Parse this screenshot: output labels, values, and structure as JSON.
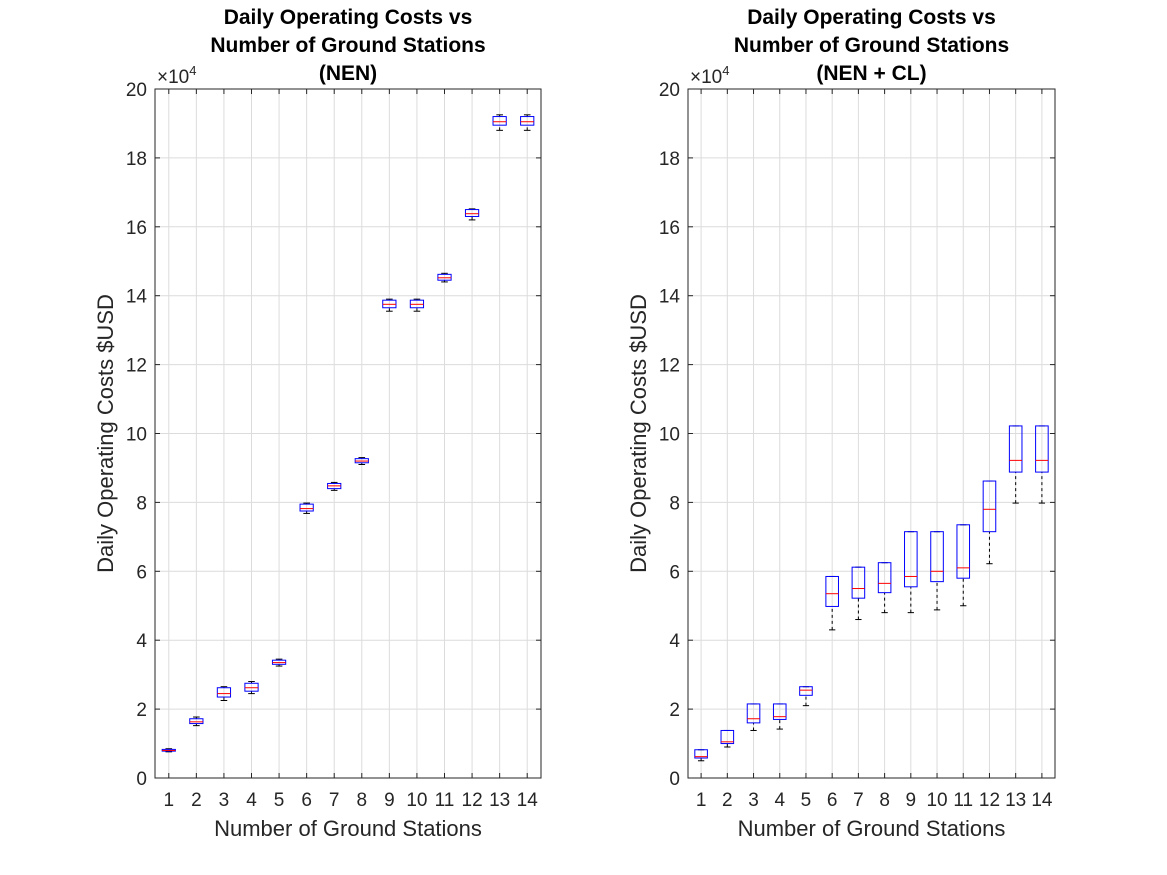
{
  "chart_data": [
    {
      "type": "box",
      "title_lines": [
        "Daily Operating Costs vs",
        "Number of Ground Stations",
        "(NEN)"
      ],
      "xlabel": "Number of Ground Stations",
      "ylabel": "Daily Operating Costs $USD",
      "y_exponent": {
        "base": "×10",
        "power": "4"
      },
      "ylim": [
        0,
        20
      ],
      "yticks": [
        0,
        2,
        4,
        6,
        8,
        10,
        12,
        14,
        16,
        18,
        20
      ],
      "categories": [
        "1",
        "2",
        "3",
        "4",
        "5",
        "6",
        "7",
        "8",
        "9",
        "10",
        "11",
        "12",
        "13",
        "14"
      ],
      "grid": true,
      "boxes": [
        {
          "min": 0.76,
          "q1": 0.78,
          "median": 0.8,
          "q3": 0.83,
          "max": 0.85
        },
        {
          "min": 1.52,
          "q1": 1.58,
          "median": 1.63,
          "q3": 1.72,
          "max": 1.77
        },
        {
          "min": 2.25,
          "q1": 2.35,
          "median": 2.45,
          "q3": 2.62,
          "max": 2.65
        },
        {
          "min": 2.45,
          "q1": 2.52,
          "median": 2.62,
          "q3": 2.75,
          "max": 2.8
        },
        {
          "min": 3.25,
          "q1": 3.3,
          "median": 3.35,
          "q3": 3.42,
          "max": 3.45
        },
        {
          "min": 7.68,
          "q1": 7.75,
          "median": 7.82,
          "q3": 7.95,
          "max": 7.98
        },
        {
          "min": 8.35,
          "q1": 8.4,
          "median": 8.48,
          "q3": 8.55,
          "max": 8.58
        },
        {
          "min": 9.1,
          "q1": 9.15,
          "median": 9.2,
          "q3": 9.27,
          "max": 9.3
        },
        {
          "min": 13.55,
          "q1": 13.65,
          "median": 13.75,
          "q3": 13.87,
          "max": 13.9
        },
        {
          "min": 13.55,
          "q1": 13.65,
          "median": 13.75,
          "q3": 13.87,
          "max": 13.9
        },
        {
          "min": 14.4,
          "q1": 14.45,
          "median": 14.52,
          "q3": 14.62,
          "max": 14.65
        },
        {
          "min": 16.2,
          "q1": 16.3,
          "median": 16.38,
          "q3": 16.5,
          "max": 16.52
        },
        {
          "min": 18.8,
          "q1": 18.95,
          "median": 19.05,
          "q3": 19.2,
          "max": 19.25
        },
        {
          "min": 18.8,
          "q1": 18.95,
          "median": 19.05,
          "q3": 19.2,
          "max": 19.25
        }
      ]
    },
    {
      "type": "box",
      "title_lines": [
        "Daily Operating Costs vs",
        "Number of Ground Stations",
        "(NEN + CL)"
      ],
      "xlabel": "Number of Ground Stations",
      "ylabel": "Daily Operating Costs $USD",
      "y_exponent": {
        "base": "×10",
        "power": "4"
      },
      "ylim": [
        0,
        20
      ],
      "yticks": [
        0,
        2,
        4,
        6,
        8,
        10,
        12,
        14,
        16,
        18,
        20
      ],
      "categories": [
        "1",
        "2",
        "3",
        "4",
        "5",
        "6",
        "7",
        "8",
        "9",
        "10",
        "11",
        "12",
        "13",
        "14"
      ],
      "grid": true,
      "boxes": [
        {
          "min": 0.5,
          "q1": 0.58,
          "median": 0.62,
          "q3": 0.82,
          "max": 0.82
        },
        {
          "min": 0.9,
          "q1": 1.0,
          "median": 1.05,
          "q3": 1.38,
          "max": 1.38
        },
        {
          "min": 1.38,
          "q1": 1.6,
          "median": 1.72,
          "q3": 2.15,
          "max": 2.15
        },
        {
          "min": 1.42,
          "q1": 1.7,
          "median": 1.78,
          "q3": 2.15,
          "max": 2.15
        },
        {
          "min": 2.1,
          "q1": 2.4,
          "median": 2.55,
          "q3": 2.65,
          "max": 2.65
        },
        {
          "min": 4.3,
          "q1": 4.98,
          "median": 5.35,
          "q3": 5.85,
          "max": 5.85
        },
        {
          "min": 4.6,
          "q1": 5.22,
          "median": 5.5,
          "q3": 6.12,
          "max": 6.12
        },
        {
          "min": 4.8,
          "q1": 5.38,
          "median": 5.65,
          "q3": 6.25,
          "max": 6.25
        },
        {
          "min": 4.8,
          "q1": 5.55,
          "median": 5.85,
          "q3": 7.15,
          "max": 7.15
        },
        {
          "min": 4.88,
          "q1": 5.7,
          "median": 6.0,
          "q3": 7.15,
          "max": 7.15
        },
        {
          "min": 5.0,
          "q1": 5.8,
          "median": 6.1,
          "q3": 7.35,
          "max": 7.35
        },
        {
          "min": 6.22,
          "q1": 7.15,
          "median": 7.8,
          "q3": 8.62,
          "max": 8.62
        },
        {
          "min": 7.98,
          "q1": 8.88,
          "median": 9.22,
          "q3": 10.22,
          "max": 10.22
        },
        {
          "min": 7.98,
          "q1": 8.88,
          "median": 9.22,
          "q3": 10.22,
          "max": 10.22
        }
      ]
    }
  ]
}
